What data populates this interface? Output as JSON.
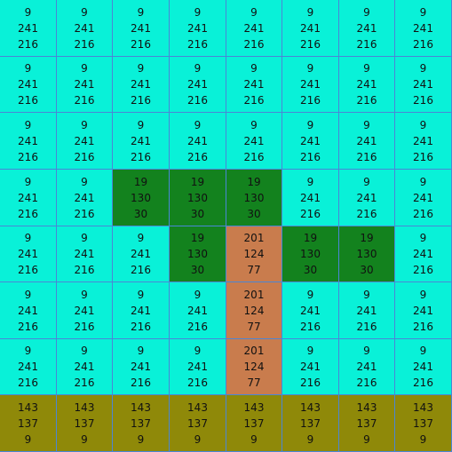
{
  "grid": {
    "rows": 8,
    "cols": 8,
    "cells": [
      [
        [
          9,
          241,
          216
        ],
        [
          9,
          241,
          216
        ],
        [
          9,
          241,
          216
        ],
        [
          9,
          241,
          216
        ],
        [
          9,
          241,
          216
        ],
        [
          9,
          241,
          216
        ],
        [
          9,
          241,
          216
        ],
        [
          9,
          241,
          216
        ]
      ],
      [
        [
          9,
          241,
          216
        ],
        [
          9,
          241,
          216
        ],
        [
          9,
          241,
          216
        ],
        [
          9,
          241,
          216
        ],
        [
          9,
          241,
          216
        ],
        [
          9,
          241,
          216
        ],
        [
          9,
          241,
          216
        ],
        [
          9,
          241,
          216
        ]
      ],
      [
        [
          9,
          241,
          216
        ],
        [
          9,
          241,
          216
        ],
        [
          9,
          241,
          216
        ],
        [
          9,
          241,
          216
        ],
        [
          9,
          241,
          216
        ],
        [
          9,
          241,
          216
        ],
        [
          9,
          241,
          216
        ],
        [
          9,
          241,
          216
        ]
      ],
      [
        [
          9,
          241,
          216
        ],
        [
          9,
          241,
          216
        ],
        [
          19,
          130,
          30
        ],
        [
          19,
          130,
          30
        ],
        [
          19,
          130,
          30
        ],
        [
          9,
          241,
          216
        ],
        [
          9,
          241,
          216
        ],
        [
          9,
          241,
          216
        ]
      ],
      [
        [
          9,
          241,
          216
        ],
        [
          9,
          241,
          216
        ],
        [
          9,
          241,
          216
        ],
        [
          19,
          130,
          30
        ],
        [
          201,
          124,
          77
        ],
        [
          19,
          130,
          30
        ],
        [
          19,
          130,
          30
        ],
        [
          9,
          241,
          216
        ]
      ],
      [
        [
          9,
          241,
          216
        ],
        [
          9,
          241,
          216
        ],
        [
          9,
          241,
          216
        ],
        [
          9,
          241,
          216
        ],
        [
          201,
          124,
          77
        ],
        [
          9,
          241,
          216
        ],
        [
          9,
          241,
          216
        ],
        [
          9,
          241,
          216
        ]
      ],
      [
        [
          9,
          241,
          216
        ],
        [
          9,
          241,
          216
        ],
        [
          9,
          241,
          216
        ],
        [
          9,
          241,
          216
        ],
        [
          201,
          124,
          77
        ],
        [
          9,
          241,
          216
        ],
        [
          9,
          241,
          216
        ],
        [
          9,
          241,
          216
        ]
      ],
      [
        [
          143,
          137,
          9
        ],
        [
          143,
          137,
          9
        ],
        [
          143,
          137,
          9
        ],
        [
          143,
          137,
          9
        ],
        [
          143,
          137,
          9
        ],
        [
          143,
          137,
          9
        ],
        [
          143,
          137,
          9
        ],
        [
          143,
          137,
          9
        ]
      ]
    ]
  }
}
